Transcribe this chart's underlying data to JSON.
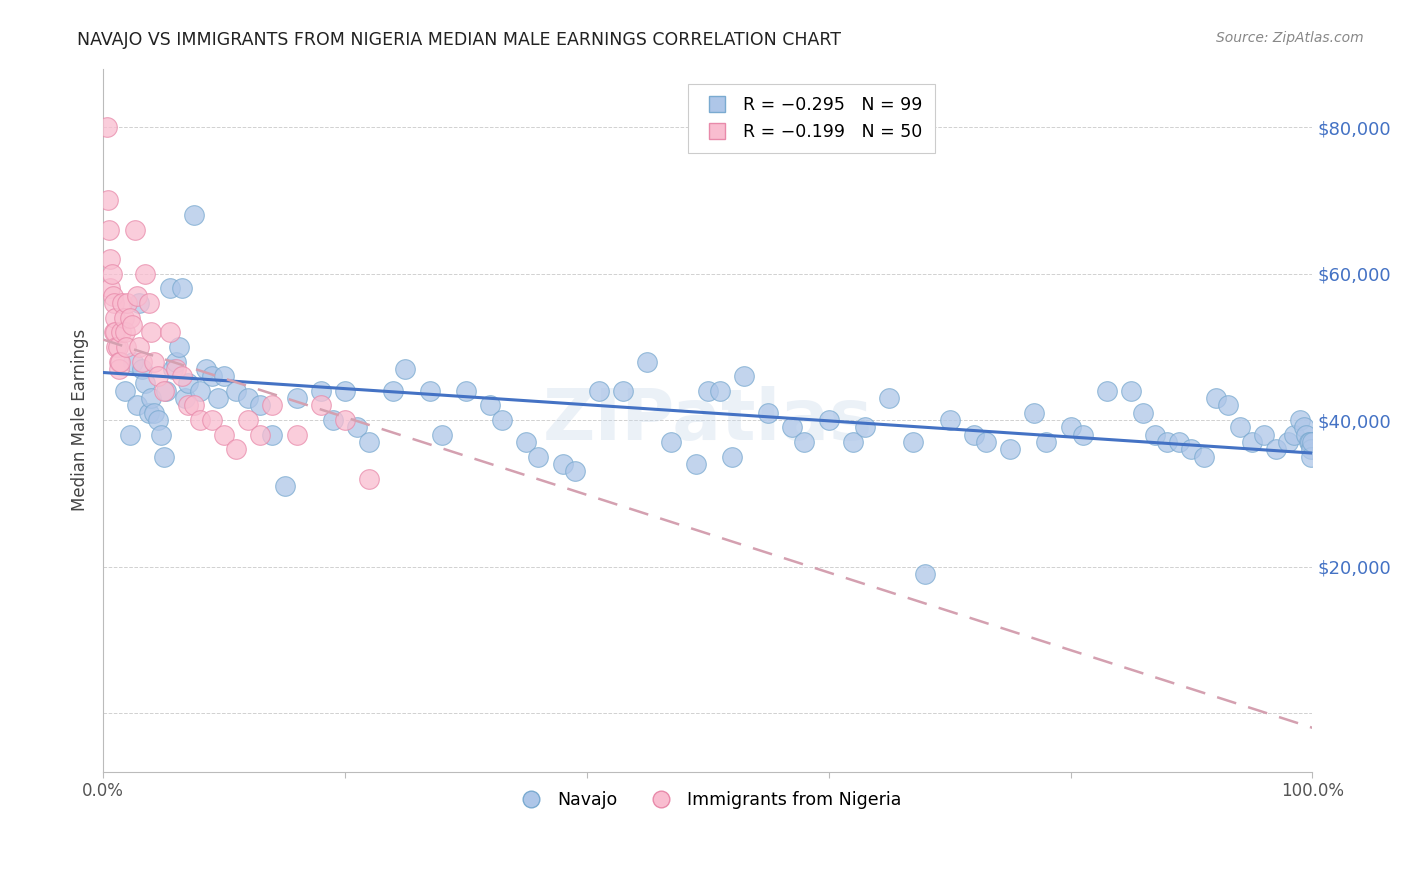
{
  "title": "NAVAJO VS IMMIGRANTS FROM NIGERIA MEDIAN MALE EARNINGS CORRELATION CHART",
  "source": "Source: ZipAtlas.com",
  "ylabel": "Median Male Earnings",
  "yticks": [
    0,
    20000,
    40000,
    60000,
    80000
  ],
  "ymax": 88000,
  "ymin": -8000,
  "xmin": 0.0,
  "xmax": 1.0,
  "legend_navajo": "Navajo",
  "legend_nigeria": "Immigrants from Nigeria",
  "navajo_color": "#aec6e8",
  "navajo_edge_color": "#7aaad0",
  "navajo_line_color": "#4472c4",
  "nigeria_color": "#f9bdd0",
  "nigeria_edge_color": "#e88aaa",
  "nigeria_line_color": "#d4a0b0",
  "watermark": "ZIPatlas",
  "navajo_x": [
    0.018,
    0.022,
    0.025,
    0.028,
    0.03,
    0.032,
    0.035,
    0.038,
    0.04,
    0.042,
    0.045,
    0.048,
    0.05,
    0.052,
    0.055,
    0.058,
    0.06,
    0.063,
    0.065,
    0.068,
    0.07,
    0.075,
    0.08,
    0.085,
    0.09,
    0.095,
    0.1,
    0.11,
    0.12,
    0.13,
    0.14,
    0.15,
    0.16,
    0.18,
    0.19,
    0.2,
    0.21,
    0.22,
    0.24,
    0.25,
    0.27,
    0.28,
    0.3,
    0.32,
    0.33,
    0.35,
    0.36,
    0.38,
    0.39,
    0.41,
    0.43,
    0.45,
    0.47,
    0.49,
    0.5,
    0.51,
    0.52,
    0.53,
    0.55,
    0.57,
    0.58,
    0.6,
    0.62,
    0.63,
    0.65,
    0.67,
    0.68,
    0.7,
    0.72,
    0.73,
    0.75,
    0.77,
    0.78,
    0.8,
    0.81,
    0.83,
    0.85,
    0.86,
    0.87,
    0.88,
    0.89,
    0.9,
    0.91,
    0.92,
    0.93,
    0.94,
    0.95,
    0.96,
    0.97,
    0.98,
    0.985,
    0.99,
    0.993,
    0.995,
    0.997,
    0.998,
    0.999,
    0.999,
    1.0
  ],
  "navajo_y": [
    44000,
    38000,
    48000,
    42000,
    56000,
    47000,
    45000,
    41000,
    43000,
    41000,
    40000,
    38000,
    35000,
    44000,
    58000,
    47000,
    48000,
    50000,
    58000,
    43000,
    45000,
    68000,
    44000,
    47000,
    46000,
    43000,
    46000,
    44000,
    43000,
    42000,
    38000,
    31000,
    43000,
    44000,
    40000,
    44000,
    39000,
    37000,
    44000,
    47000,
    44000,
    38000,
    44000,
    42000,
    40000,
    37000,
    35000,
    34000,
    33000,
    44000,
    44000,
    48000,
    37000,
    34000,
    44000,
    44000,
    35000,
    46000,
    41000,
    39000,
    37000,
    40000,
    37000,
    39000,
    43000,
    37000,
    19000,
    40000,
    38000,
    37000,
    36000,
    41000,
    37000,
    39000,
    38000,
    44000,
    44000,
    41000,
    38000,
    37000,
    37000,
    36000,
    35000,
    43000,
    42000,
    39000,
    37000,
    38000,
    36000,
    37000,
    38000,
    40000,
    39000,
    38000,
    37000,
    37000,
    36000,
    35000,
    37000
  ],
  "nigeria_x": [
    0.003,
    0.004,
    0.005,
    0.006,
    0.006,
    0.007,
    0.008,
    0.009,
    0.009,
    0.01,
    0.01,
    0.011,
    0.012,
    0.013,
    0.013,
    0.014,
    0.015,
    0.016,
    0.017,
    0.018,
    0.019,
    0.02,
    0.022,
    0.024,
    0.026,
    0.028,
    0.03,
    0.032,
    0.035,
    0.038,
    0.04,
    0.042,
    0.045,
    0.05,
    0.055,
    0.06,
    0.065,
    0.07,
    0.075,
    0.08,
    0.09,
    0.1,
    0.11,
    0.12,
    0.13,
    0.14,
    0.16,
    0.18,
    0.2,
    0.22
  ],
  "nigeria_y": [
    80000,
    70000,
    66000,
    62000,
    58000,
    60000,
    57000,
    56000,
    52000,
    54000,
    52000,
    50000,
    50000,
    48000,
    47000,
    48000,
    52000,
    56000,
    54000,
    52000,
    50000,
    56000,
    54000,
    53000,
    66000,
    57000,
    50000,
    48000,
    60000,
    56000,
    52000,
    48000,
    46000,
    44000,
    52000,
    47000,
    46000,
    42000,
    42000,
    40000,
    40000,
    38000,
    36000,
    40000,
    38000,
    42000,
    38000,
    42000,
    40000,
    32000
  ],
  "nav_trend_x0": 0.0,
  "nav_trend_y0": 46500,
  "nav_trend_x1": 1.0,
  "nav_trend_y1": 35500,
  "nig_trend_x0": 0.0,
  "nig_trend_y0": 51000,
  "nig_trend_x1": 1.0,
  "nig_trend_y1": -2000
}
